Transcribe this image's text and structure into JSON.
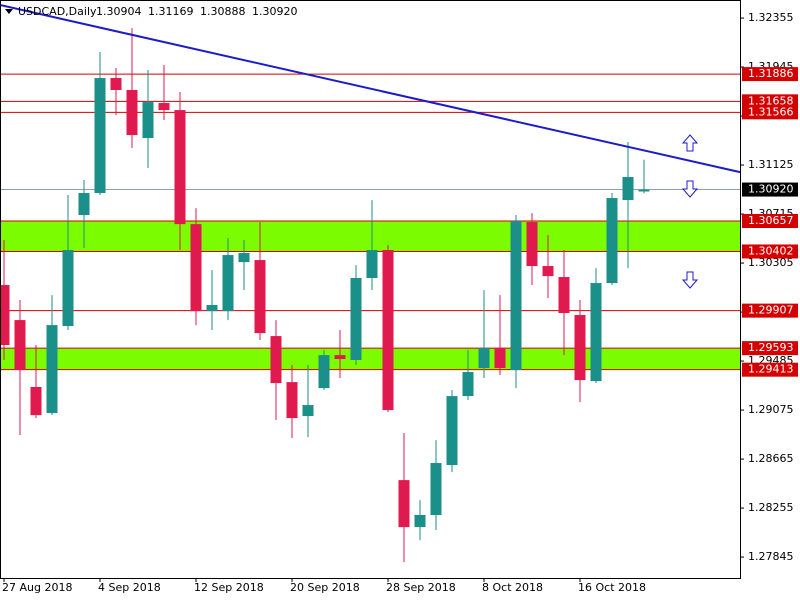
{
  "chart_data": {
    "type": "candlestick",
    "title": "USDCAD,Daily",
    "header_values": [
      "1.30904",
      "1.31169",
      "1.30888",
      "1.30920"
    ],
    "categories": [
      "27 Aug 2018",
      null,
      null,
      null,
      null,
      null,
      "4 Sep 2018",
      null,
      null,
      null,
      null,
      null,
      "12 Sep 2018",
      null,
      null,
      null,
      null,
      null,
      "20 Sep 2018",
      null,
      null,
      null,
      null,
      null,
      "28 Sep 2018",
      null,
      null,
      null,
      null,
      null,
      "8 Oct 2018",
      null,
      null,
      null,
      null,
      null,
      "16 Oct 2018",
      null,
      null,
      null,
      null
    ],
    "open": [
      1.30121,
      1.29828,
      1.29268,
      1.2905,
      1.29778,
      1.30707,
      1.30891,
      1.31853,
      1.31753,
      1.31351,
      1.31644,
      1.31585,
      1.30631,
      1.29903,
      1.29903,
      1.30313,
      1.3033,
      1.29694,
      1.29309,
      1.29025,
      1.29259,
      1.29535,
      1.29494,
      1.3018,
      1.30414,
      1.28489,
      1.28096,
      1.28197,
      1.28615,
      1.29192,
      1.29427,
      1.29594,
      1.2941,
      1.30648,
      1.3028,
      1.30188,
      1.2987,
      1.29318,
      1.30138,
      1.30832,
      1.30904
    ],
    "high": [
      1.30498,
      1.29996,
      1.29619,
      1.30037,
      1.30874,
      1.31,
      1.32071,
      1.31937,
      1.32271,
      1.3192,
      1.31962,
      1.31736,
      1.30765,
      1.30246,
      1.30514,
      1.30498,
      1.30648,
      1.29828,
      1.29452,
      1.29452,
      1.29577,
      1.29745,
      1.30288,
      1.30832,
      1.30456,
      1.28883,
      1.28322,
      1.28824,
      1.29242,
      1.29577,
      1.30079,
      1.30037,
      1.30707,
      1.30723,
      1.30539,
      1.30414,
      1.29996,
      1.30263,
      1.30891,
      1.31318,
      1.31169
    ],
    "low": [
      1.29494,
      1.28866,
      1.29008,
      1.29033,
      1.29745,
      1.30431,
      1.30874,
      1.31543,
      1.31267,
      1.311,
      1.31502,
      1.30414,
      1.29786,
      1.29745,
      1.29828,
      1.30079,
      1.29661,
      1.28991,
      1.28841,
      1.28849,
      1.29242,
      1.29343,
      1.29452,
      1.30079,
      1.29058,
      1.27803,
      1.27987,
      1.28071,
      1.28556,
      1.29159,
      1.29343,
      1.29368,
      1.29259,
      1.30121,
      1.30012,
      1.29535,
      1.29142,
      1.29301,
      1.30121,
      1.30263,
      1.30888
    ],
    "close": [
      1.29619,
      1.2941,
      1.29033,
      1.29786,
      1.30414,
      1.30891,
      1.31853,
      1.31753,
      1.31376,
      1.31652,
      1.31585,
      1.30631,
      1.29903,
      1.29954,
      1.30372,
      1.30389,
      1.29719,
      1.29301,
      1.29008,
      1.29117,
      1.29535,
      1.29502,
      1.3018,
      1.30414,
      1.29075,
      1.28096,
      1.28197,
      1.28632,
      1.29192,
      1.29393,
      1.29594,
      1.29427,
      1.30657,
      1.3028,
      1.30196,
      1.29887,
      1.29326,
      1.30138,
      1.30849,
      1.31025,
      1.3092
    ],
    "up_color": "#1b8f8a",
    "down_color": "#e0194e",
    "ylim": [
      1.2767,
      1.32506
    ],
    "yticks": [
      1.32355,
      1.31945,
      1.31535,
      1.31125,
      1.30715,
      1.30305,
      1.29895,
      1.29485,
      1.29075,
      1.28665,
      1.28255,
      1.27845
    ],
    "levels": [
      1.31886,
      1.31658,
      1.31566,
      1.29907
    ],
    "level_color": "#d40000",
    "zones": [
      {
        "top": 1.30657,
        "bottom": 1.30402
      },
      {
        "top": 1.29593,
        "bottom": 1.29413
      }
    ],
    "zone_color": "#7cfc00",
    "current_price": {
      "value": 1.3092,
      "label": "1.30920"
    },
    "current_color": "#7f93a6",
    "trendline": [
      1.32464,
      1.31066
    ],
    "trendline_color": "#1c1cc8"
  }
}
